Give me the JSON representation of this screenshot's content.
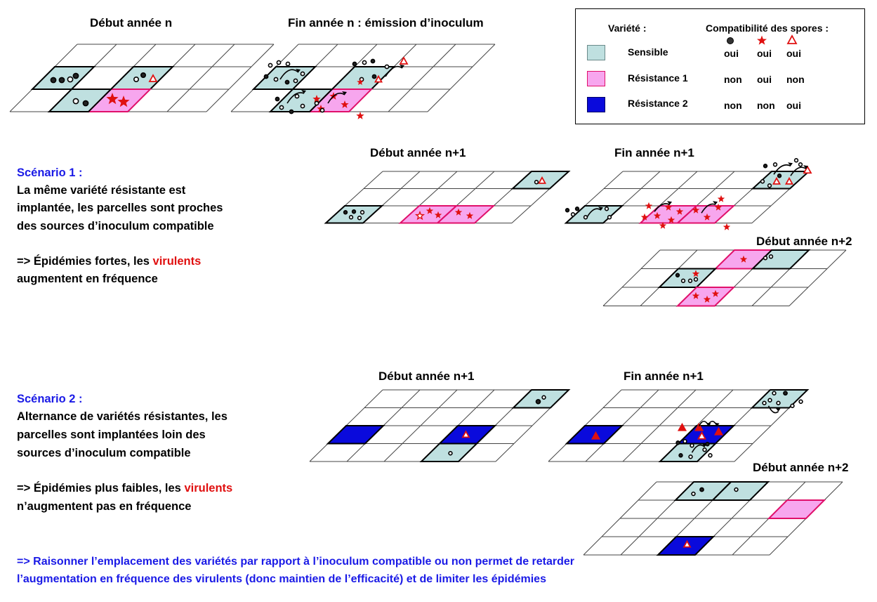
{
  "titles": {
    "t1": "Début année n",
    "t2": "Fin année n : émission d’inoculum",
    "t3": "Début année n+1",
    "t4": "Fin année n+1",
    "t5": "Début année n+2",
    "t6": "Début année n+1",
    "t7": "Fin année n+1",
    "t8": "Début année n+2"
  },
  "legend": {
    "variete": "Variété :",
    "compat": "Compatibilité des spores :",
    "rows": [
      {
        "label": "Sensible",
        "values": [
          "oui",
          "oui",
          "oui"
        ],
        "color": "#bfe0e0"
      },
      {
        "label": "Résistance 1",
        "values": [
          "non",
          "oui",
          "non"
        ],
        "color": "#f7a6ee"
      },
      {
        "label": "Résistance 2",
        "values": [
          "non",
          "non",
          "oui"
        ],
        "color": "#0a0adc"
      }
    ],
    "spore_icons": [
      "black-dot-icon",
      "red-star-icon",
      "red-triangle-icon"
    ]
  },
  "scenario1": {
    "title": "Scénario 1 :",
    "line1": "La même variété résistante est",
    "line2": "implantée, les parcelles sont proches",
    "line3": "des sources d’inoculum  compatible",
    "c1": "=> Épidémies fortes, les ",
    "c_red": "virulents",
    "c2": "augmentent en fréquence"
  },
  "scenario2": {
    "title": "Scénario 2 :",
    "line1": "Alternance de variétés résistantes, les",
    "line2": "parcelles sont implantées loin des",
    "line3": "sources d’inoculum  compatible",
    "c1": "=> Épidémies plus faibles, les ",
    "c_red": "virulents",
    "c2": "n’augmentent pas en fréquence"
  },
  "conclusion": {
    "line1": "=> Raisonner l’emplacement des variétés par rapport à l’inoculum  compatible ou non permet de retarder",
    "line2": "l’augmentation en fréquence des virulents (donc maintien de l’efficacité) et de limiter les épidémies"
  },
  "colors": {
    "sensible": "#bfe0e0",
    "resistance1": "#f7a6ee",
    "resistance1_border": "#e0106a",
    "resistance2": "#0a0adc",
    "blue_text": "#1a1ae6",
    "red_text": "#e01010"
  }
}
